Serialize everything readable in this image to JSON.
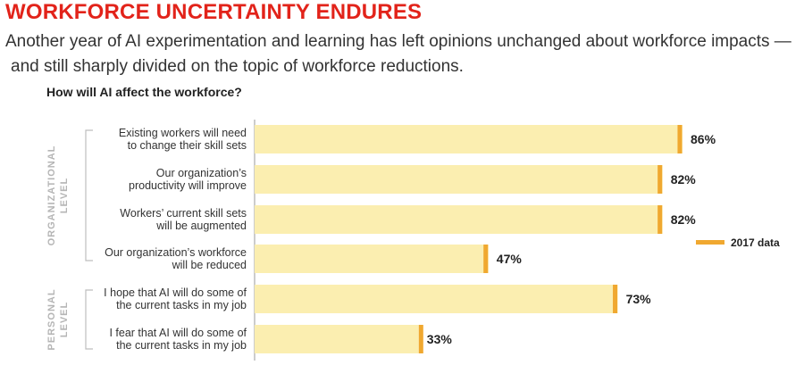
{
  "header": {
    "title": "WORKFORCE UNCERTAINTY ENDURES",
    "subtitle_line1": "Another year of AI experimentation and learning has left opinions unchanged about workforce impacts —",
    "subtitle_line2": "and still sharply divided on the topic of workforce reductions."
  },
  "colors": {
    "title": "#e2231a",
    "bar": "#fbeeb0",
    "marker_2017": "#f0a830",
    "group_label": "#b5b5b5",
    "bracket": "#bdbdbd"
  },
  "chart_data": {
    "type": "bar",
    "orientation": "horizontal",
    "title": "How will AI affect the workforce?",
    "xlim": [
      0,
      100
    ],
    "grid": false,
    "legend_position": "right",
    "groups": [
      {
        "label_line1": "ORGANIZATIONAL",
        "label_line2": "LEVEL",
        "rows": [
          0,
          1,
          2,
          3
        ]
      },
      {
        "label_line1": "PERSONAL",
        "label_line2": "LEVEL",
        "rows": [
          4,
          5
        ]
      }
    ],
    "categories": [
      [
        "Existing workers will need",
        "to change their skill sets"
      ],
      [
        "Our organization’s",
        "productivity will improve"
      ],
      [
        "Workers’ current skill sets",
        "will be augmented"
      ],
      [
        "Our organization’s workforce",
        "will be reduced"
      ],
      [
        "I hope that AI will do some of",
        "the current tasks in my job"
      ],
      [
        "I fear that AI will do some of",
        "the current tasks in my job"
      ]
    ],
    "series": [
      {
        "values": [
          86,
          82,
          82,
          47,
          73,
          33
        ]
      },
      {
        "name": "2017 data",
        "values": [
          85,
          81,
          81,
          46,
          72,
          33
        ],
        "style": "marker"
      }
    ],
    "value_labels": [
      "86%",
      "82%",
      "82%",
      "47%",
      "73%",
      "33%"
    ],
    "legend": [
      {
        "label": "2017 data"
      }
    ]
  }
}
